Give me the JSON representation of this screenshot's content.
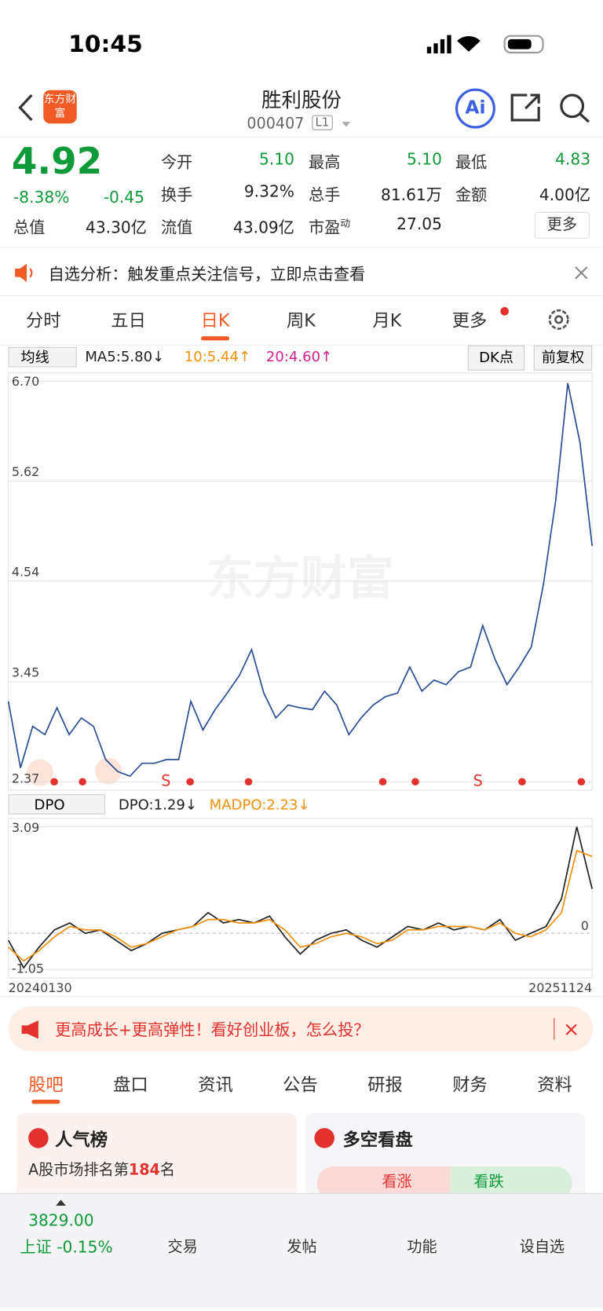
{
  "status": {
    "time": "10:45"
  },
  "header": {
    "logo": "东方财富",
    "title": "胜利股份",
    "code": "000407",
    "badge": "L1",
    "ai": "Ai"
  },
  "quote": {
    "price": "4.92",
    "change_pct": "-8.38%",
    "change": "-0.45",
    "fields": [
      [
        "今开",
        "5.10"
      ],
      [
        "最高",
        "5.10"
      ],
      [
        "最低",
        "4.83"
      ],
      [
        "换手",
        "9.32%"
      ],
      [
        "总手",
        "81.61万"
      ],
      [
        "金额",
        "4.00亿"
      ],
      [
        "总值",
        "43.30亿"
      ],
      [
        "流值",
        "43.09亿"
      ],
      [
        "市盈",
        "27.05"
      ]
    ],
    "pe_sup": "动",
    "more": "更多"
  },
  "notice": "自选分析：触发重点关注信号，立即点击查看",
  "tabs": [
    "分时",
    "五日",
    "日K",
    "周K",
    "月K",
    "更多"
  ],
  "indicator": {
    "select": "均线",
    "ma5": "MA5:5.80↓",
    "ma10": "10:5.44↑",
    "ma20": "20:4.60↑",
    "dk": "DK点",
    "adjust": "前复权"
  },
  "watermark": "东方财富",
  "signals": [
    "S",
    "S"
  ],
  "price_chart": {
    "ylim": [
      2.37,
      6.7
    ],
    "yticks": [
      {
        "value": 6.7,
        "label": "6.70"
      },
      5.62,
      4.54,
      3.45,
      2.37
    ],
    "values": [
      3.24,
      2.52,
      2.97,
      2.88,
      3.17,
      2.88,
      3.06,
      2.97,
      2.61,
      2.48,
      2.43,
      2.57,
      2.57,
      2.61,
      2.61,
      3.24,
      2.93,
      3.15,
      3.33,
      3.52,
      3.8,
      3.33,
      3.06,
      3.2,
      3.17,
      3.15,
      3.35,
      3.2,
      2.88,
      3.06,
      3.2,
      3.29,
      3.33,
      3.61,
      3.35,
      3.47,
      3.42,
      3.56,
      3.61,
      4.06,
      3.7,
      3.42,
      3.61,
      3.83,
      4.51,
      5.41,
      6.68,
      6.04,
      4.92
    ]
  },
  "dpo_bar": {
    "select": "DPO",
    "dpo": "DPO:1.29↓",
    "madpo": "MADPO:2.23↓"
  },
  "dpo_chart": {
    "ylim": [
      -1.05,
      3.09
    ],
    "yticks": [
      3.09,
      0,
      -1.05
    ],
    "series": [
      {
        "name": "DPO",
        "color": "#222222",
        "values": [
          -0.2,
          -1.0,
          -0.4,
          0.1,
          0.3,
          0.0,
          0.1,
          -0.2,
          -0.5,
          -0.3,
          0.0,
          0.1,
          0.2,
          0.6,
          0.3,
          0.4,
          0.3,
          0.5,
          -0.1,
          -0.6,
          -0.2,
          0.0,
          0.1,
          -0.2,
          -0.4,
          -0.1,
          0.2,
          0.1,
          0.3,
          0.1,
          0.2,
          0.1,
          0.4,
          -0.2,
          0.0,
          0.2,
          1.0,
          3.09,
          1.29
        ]
      },
      {
        "name": "MADPO",
        "color": "#f0900c",
        "values": [
          -0.4,
          -0.8,
          -0.5,
          -0.1,
          0.2,
          0.1,
          0.1,
          -0.1,
          -0.4,
          -0.3,
          -0.1,
          0.1,
          0.2,
          0.4,
          0.4,
          0.3,
          0.3,
          0.4,
          0.1,
          -0.4,
          -0.3,
          -0.1,
          0.0,
          -0.1,
          -0.3,
          -0.2,
          0.1,
          0.1,
          0.2,
          0.2,
          0.2,
          0.1,
          0.3,
          0.0,
          -0.1,
          0.1,
          0.6,
          2.4,
          2.23
        ]
      }
    ],
    "x_labels": [
      "20240130",
      "20251124"
    ]
  },
  "ad": "更高成长+更高弹性！看好创业板，怎么投？",
  "section_tabs": [
    "股吧",
    "盘口",
    "资讯",
    "公告",
    "研报",
    "财务",
    "资料"
  ],
  "cards": {
    "rank_title": "人气榜",
    "rank_text": "A股市场排名第",
    "rank": "184",
    "rank_unit": "名",
    "vs_title": "多空看盘",
    "up": "看涨",
    "down": "看跌"
  },
  "bottom": {
    "index_value": "3829.00",
    "index_name": "上证 -0.15%",
    "items": [
      "交易",
      "发帖",
      "功能",
      "设自选"
    ]
  }
}
